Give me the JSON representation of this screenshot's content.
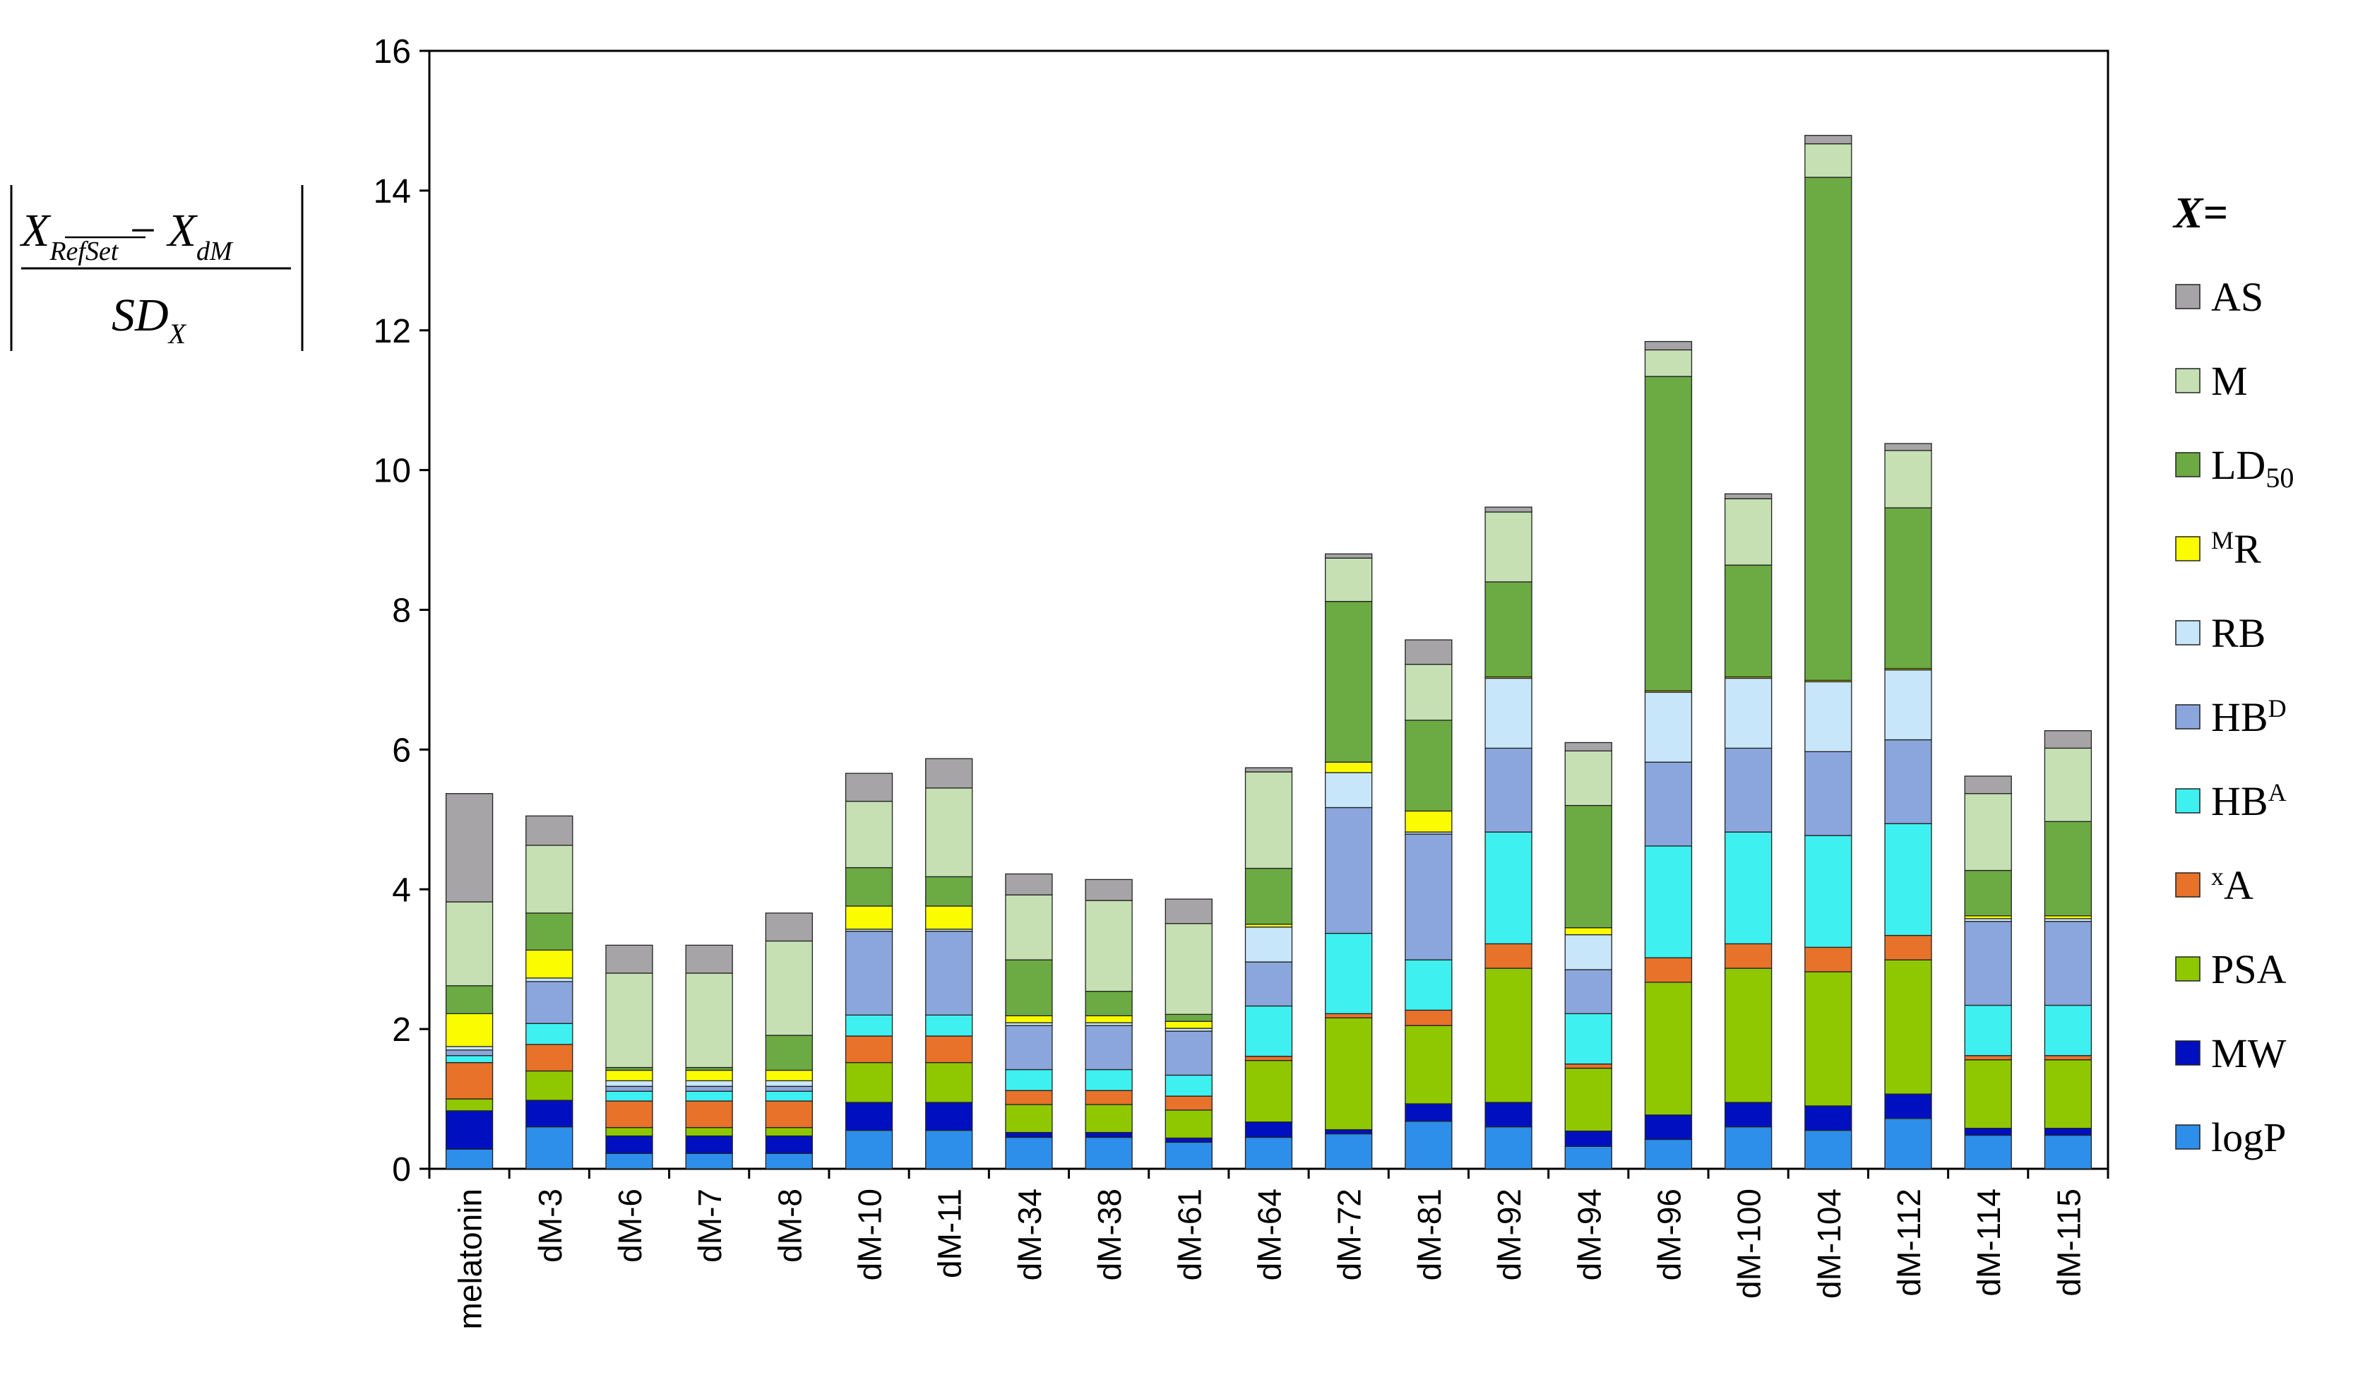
{
  "chart_data": {
    "type": "bar",
    "stacked": true,
    "ylabel_formula": {
      "numerator_main_1": "X",
      "numerator_sub_1": "RefSet",
      "numerator_minus": "−",
      "numerator_main_2": "X",
      "numerator_sub_2": "dM",
      "denominator_main": "SD",
      "denominator_sub": "X"
    },
    "ylim": [
      0,
      16
    ],
    "yticks": [
      0,
      2,
      4,
      6,
      8,
      10,
      12,
      14,
      16
    ],
    "grid": false,
    "legend_position": "right",
    "legend_title": "X=",
    "categories": [
      "melatonin",
      "dM-3",
      "dM-6",
      "dM-7",
      "dM-8",
      "dM-10",
      "dM-11",
      "dM-34",
      "dM-38",
      "dM-61",
      "dM-64",
      "dM-72",
      "dM-81",
      "dM-92",
      "dM-94",
      "dM-96",
      "dM-100",
      "dM-104",
      "dM-112",
      "dM-114",
      "dM-115"
    ],
    "series": [
      {
        "key": "logP",
        "name": "logP",
        "color": "#2e8fea",
        "values": [
          0.28,
          0.6,
          0.22,
          0.22,
          0.22,
          0.55,
          0.55,
          0.45,
          0.45,
          0.38,
          0.45,
          0.5,
          0.68,
          0.6,
          0.32,
          0.42,
          0.6,
          0.55,
          0.72,
          0.48,
          0.48
        ]
      },
      {
        "key": "MW",
        "name": "MW",
        "color": "#0010c0",
        "values": [
          0.55,
          0.38,
          0.25,
          0.25,
          0.25,
          0.4,
          0.4,
          0.07,
          0.07,
          0.06,
          0.22,
          0.06,
          0.25,
          0.35,
          0.22,
          0.35,
          0.35,
          0.35,
          0.35,
          0.1,
          0.1
        ]
      },
      {
        "key": "PSA",
        "name": "PSA",
        "color": "#8fc800",
        "values": [
          0.17,
          0.42,
          0.12,
          0.12,
          0.12,
          0.57,
          0.57,
          0.4,
          0.4,
          0.4,
          0.88,
          1.6,
          1.12,
          1.92,
          0.9,
          1.9,
          1.92,
          1.92,
          1.92,
          0.98,
          0.98
        ]
      },
      {
        "key": "xA",
        "name": "A",
        "prefix_sup": "x",
        "color": "#e8722a",
        "values": [
          0.52,
          0.38,
          0.38,
          0.38,
          0.38,
          0.38,
          0.38,
          0.2,
          0.2,
          0.2,
          0.06,
          0.06,
          0.22,
          0.35,
          0.06,
          0.35,
          0.35,
          0.35,
          0.35,
          0.06,
          0.06
        ]
      },
      {
        "key": "HBA",
        "name": "HB",
        "suffix_sup": "A",
        "color": "#3ff0f0",
        "values": [
          0.1,
          0.3,
          0.14,
          0.14,
          0.14,
          0.3,
          0.3,
          0.3,
          0.3,
          0.3,
          0.72,
          1.15,
          0.72,
          1.6,
          0.72,
          1.6,
          1.6,
          1.6,
          1.6,
          0.72,
          0.72
        ]
      },
      {
        "key": "HBD",
        "name": "HB",
        "suffix_sup": "D",
        "color": "#8aa6dc",
        "values": [
          0.08,
          0.6,
          0.07,
          0.07,
          0.07,
          1.2,
          1.2,
          0.63,
          0.63,
          0.63,
          0.63,
          1.8,
          1.8,
          1.2,
          0.63,
          1.2,
          1.2,
          1.2,
          1.2,
          1.2,
          1.2
        ]
      },
      {
        "key": "RB",
        "name": "RB",
        "color": "#c8e6fa",
        "values": [
          0.05,
          0.05,
          0.08,
          0.08,
          0.08,
          0.03,
          0.03,
          0.04,
          0.04,
          0.04,
          0.5,
          0.5,
          0.03,
          1.0,
          0.5,
          1.0,
          1.0,
          1.0,
          1.0,
          0.04,
          0.04
        ]
      },
      {
        "key": "MR",
        "name": "R",
        "prefix_sup": "M",
        "color": "#fcfc00",
        "values": [
          0.47,
          0.4,
          0.15,
          0.15,
          0.15,
          0.33,
          0.33,
          0.1,
          0.1,
          0.1,
          0.04,
          0.15,
          0.3,
          0.02,
          0.1,
          0.02,
          0.02,
          0.02,
          0.02,
          0.04,
          0.04
        ]
      },
      {
        "key": "LD50",
        "name": "LD",
        "suffix_sub": "50",
        "color": "#6caa44",
        "values": [
          0.4,
          0.53,
          0.04,
          0.04,
          0.5,
          0.55,
          0.42,
          0.8,
          0.35,
          0.1,
          0.8,
          2.3,
          1.3,
          1.36,
          1.75,
          4.5,
          1.6,
          7.2,
          2.3,
          0.65,
          1.35
        ]
      },
      {
        "key": "M",
        "name": "M",
        "color": "#c6e0b4",
        "values": [
          1.2,
          0.97,
          1.35,
          1.35,
          1.35,
          0.95,
          1.27,
          0.93,
          1.3,
          1.3,
          1.38,
          0.62,
          0.8,
          1.0,
          0.78,
          0.38,
          0.95,
          0.48,
          0.82,
          1.1,
          1.05
        ]
      },
      {
        "key": "AS",
        "name": "AS",
        "color": "#a6a4a6",
        "values": [
          1.55,
          0.42,
          0.4,
          0.4,
          0.4,
          0.4,
          0.42,
          0.3,
          0.3,
          0.35,
          0.06,
          0.06,
          0.35,
          0.07,
          0.12,
          0.12,
          0.07,
          0.12,
          0.1,
          0.25,
          0.25
        ]
      }
    ]
  }
}
